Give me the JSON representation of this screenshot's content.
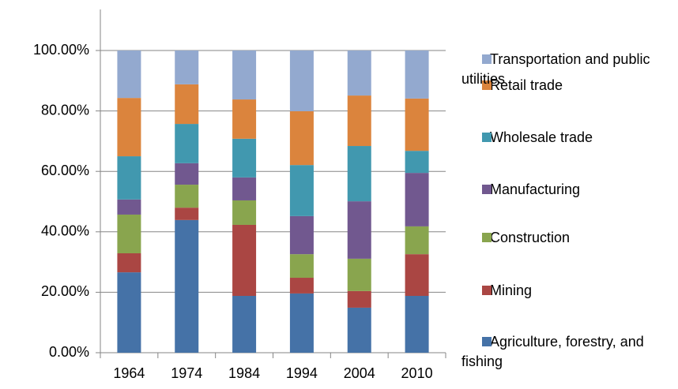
{
  "chart_data": {
    "type": "stacked_bar",
    "categories": [
      "1964",
      "1974",
      "1984",
      "1994",
      "2004",
      "2010"
    ],
    "series": [
      {
        "name": "Agriculture, forestry, and fishing",
        "color": "#4572a7",
        "values": [
          26.6,
          43.9,
          18.8,
          19.6,
          14.9,
          18.8
        ]
      },
      {
        "name": "Mining",
        "color": "#aa4643",
        "values": [
          6.3,
          4.1,
          23.5,
          5.2,
          5.5,
          13.8
        ]
      },
      {
        "name": "Construction",
        "color": "#89a54e",
        "values": [
          12.8,
          7.6,
          8.1,
          7.8,
          10.7,
          9.2
        ]
      },
      {
        "name": "Manufacturing",
        "color": "#71588f",
        "values": [
          5.0,
          7.1,
          7.6,
          12.6,
          19.0,
          17.7
        ]
      },
      {
        "name": "Wholesale trade",
        "color": "#4198af",
        "values": [
          14.3,
          13.0,
          12.8,
          16.9,
          18.3,
          7.3
        ]
      },
      {
        "name": "Retail trade",
        "color": "#db843d",
        "values": [
          19.3,
          13.1,
          13.0,
          17.8,
          16.7,
          17.3
        ]
      },
      {
        "name": "Transportation and public utilities",
        "color": "#93a9cf",
        "values": [
          15.7,
          11.2,
          16.2,
          20.1,
          14.9,
          15.9
        ]
      }
    ],
    "ylim": [
      0,
      100
    ],
    "yticks": [
      {
        "value": 0,
        "label": "0.00%"
      },
      {
        "value": 20,
        "label": "20.00%"
      },
      {
        "value": 40,
        "label": "40.00%"
      },
      {
        "value": 60,
        "label": "60.00%"
      },
      {
        "value": 80,
        "label": "80.00%"
      },
      {
        "value": 100,
        "label": "100.00%"
      }
    ],
    "grid": true,
    "legend": "right"
  }
}
